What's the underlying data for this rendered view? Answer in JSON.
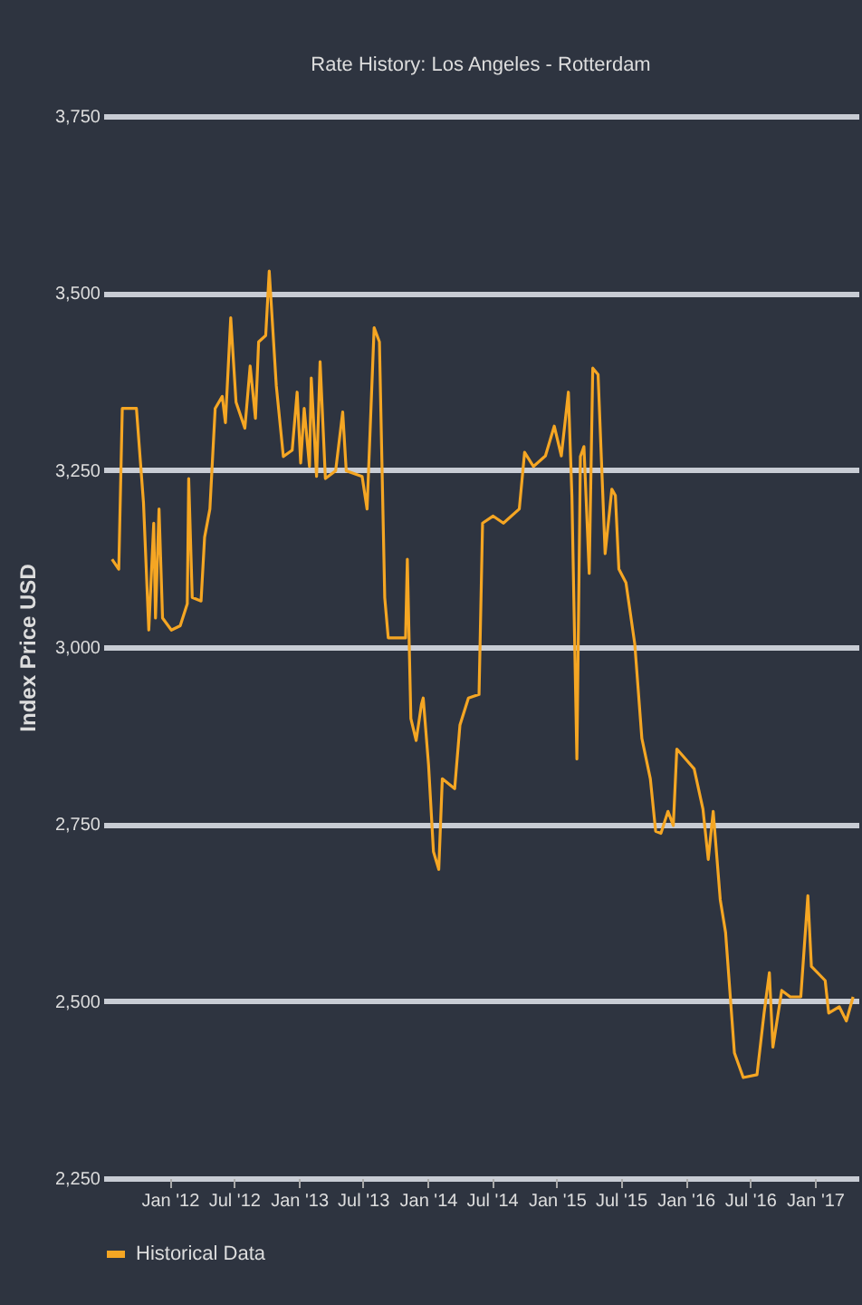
{
  "chart_data": {
    "type": "line",
    "title": "Rate History: Los Angeles - Rotterdam",
    "ylabel": "Index Price USD",
    "x": [
      "2011-07-22",
      "2011-08-10",
      "2011-08-20",
      "2011-09-29",
      "2011-10-19",
      "2011-11-03",
      "2011-11-17",
      "2011-11-22",
      "2011-12-02",
      "2011-12-12",
      "2012-01-06",
      "2012-01-31",
      "2012-02-20",
      "2012-02-24",
      "2012-03-05",
      "2012-03-30",
      "2012-04-09",
      "2012-04-24",
      "2012-05-09",
      "2012-05-29",
      "2012-06-07",
      "2012-06-22",
      "2012-07-07",
      "2012-08-01",
      "2012-08-16",
      "2012-08-31",
      "2012-09-09",
      "2012-09-29",
      "2012-10-09",
      "2012-10-29",
      "2012-11-18",
      "2012-12-13",
      "2012-12-27",
      "2013-01-06",
      "2013-01-16",
      "2013-01-31",
      "2013-02-05",
      "2013-02-20",
      "2013-03-02",
      "2013-03-17",
      "2013-04-15",
      "2013-05-05",
      "2013-05-15",
      "2013-06-29",
      "2013-07-13",
      "2013-08-02",
      "2013-08-17",
      "2013-09-01",
      "2013-09-11",
      "2013-10-30",
      "2013-11-04",
      "2013-11-14",
      "2013-11-29",
      "2013-12-14",
      "2013-12-19",
      "2014-01-03",
      "2014-01-17",
      "2014-02-01",
      "2014-02-11",
      "2014-03-18",
      "2014-04-02",
      "2014-04-26",
      "2014-05-26",
      "2014-06-05",
      "2014-07-05",
      "2014-08-03",
      "2014-09-17",
      "2014-10-02",
      "2014-10-27",
      "2014-11-30",
      "2014-12-25",
      "2015-01-14",
      "2015-02-03",
      "2015-02-13",
      "2015-02-27",
      "2015-03-09",
      "2015-03-19",
      "2015-04-03",
      "2015-04-13",
      "2015-04-28",
      "2015-05-18",
      "2015-06-06",
      "2015-06-16",
      "2015-06-26",
      "2015-07-16",
      "2015-08-10",
      "2015-08-30",
      "2015-09-23",
      "2015-10-08",
      "2015-10-23",
      "2015-11-12",
      "2015-11-27",
      "2015-12-07",
      "2016-01-25",
      "2016-02-19",
      "2016-03-05",
      "2016-03-19",
      "2016-04-08",
      "2016-04-23",
      "2016-05-18",
      "2016-06-12",
      "2016-07-21",
      "2016-08-10",
      "2016-08-25",
      "2016-09-04",
      "2016-09-29",
      "2016-10-23",
      "2016-11-22",
      "2016-12-12",
      "2016-12-22",
      "2017-01-30",
      "2017-02-09",
      "2017-03-11",
      "2017-03-31",
      "2017-04-19"
    ],
    "series": [
      {
        "name": "Historical Data",
        "color": "#f5a623",
        "values": [
          3124,
          3110,
          3337,
          3337,
          3204,
          3024,
          3175,
          3041,
          3195,
          3041,
          3024,
          3030,
          3061,
          3238,
          3070,
          3065,
          3155,
          3195,
          3337,
          3354,
          3317,
          3465,
          3346,
          3309,
          3397,
          3323,
          3431,
          3440,
          3531,
          3369,
          3269,
          3278,
          3360,
          3260,
          3337,
          3255,
          3380,
          3241,
          3403,
          3238,
          3249,
          3332,
          3249,
          3241,
          3195,
          3451,
          3431,
          3070,
          3013,
          3013,
          3124,
          2899,
          2868,
          2919,
          2928,
          2834,
          2711,
          2686,
          2814,
          2800,
          2890,
          2928,
          2933,
          3175,
          3185,
          3175,
          3195,
          3275,
          3255,
          3270,
          3312,
          3270,
          3360,
          3212,
          2842,
          3269,
          3283,
          3104,
          3394,
          3385,
          3132,
          3223,
          3214,
          3110,
          3091,
          3004,
          2871,
          2814,
          2740,
          2737,
          2768,
          2748,
          2856,
          2828,
          2771,
          2700,
          2768,
          2643,
          2597,
          2427,
          2392,
          2396,
          2483,
          2540,
          2435,
          2515,
          2506,
          2506,
          2649,
          2549,
          2529,
          2483,
          2492,
          2472,
          2506
        ]
      }
    ],
    "xlim": [
      "2011-06-27",
      "2017-05-04"
    ],
    "xticks": [
      {
        "value": "2012-01-01",
        "label": "Jan '12"
      },
      {
        "value": "2012-07-01",
        "label": "Jul '12"
      },
      {
        "value": "2013-01-01",
        "label": "Jan '13"
      },
      {
        "value": "2013-07-01",
        "label": "Jul '13"
      },
      {
        "value": "2014-01-01",
        "label": "Jan '14"
      },
      {
        "value": "2014-07-01",
        "label": "Jul '14"
      },
      {
        "value": "2015-01-01",
        "label": "Jan '15"
      },
      {
        "value": "2015-07-01",
        "label": "Jul '15"
      },
      {
        "value": "2016-01-01",
        "label": "Jan '16"
      },
      {
        "value": "2016-07-01",
        "label": "Jul '16"
      },
      {
        "value": "2017-01-01",
        "label": "Jan '17"
      }
    ],
    "ylim": [
      2250,
      3750
    ],
    "yticks": [
      {
        "value": 2250,
        "label": "2,250"
      },
      {
        "value": 2500,
        "label": "2,500"
      },
      {
        "value": 2750,
        "label": "2,750"
      },
      {
        "value": 3000,
        "label": "3,000"
      },
      {
        "value": 3250,
        "label": "3,250"
      },
      {
        "value": 3500,
        "label": "3,500"
      },
      {
        "value": 3750,
        "label": "3,750"
      }
    ],
    "grid": "y",
    "legend": "bottom",
    "marker": "none",
    "line_style": "solid"
  }
}
